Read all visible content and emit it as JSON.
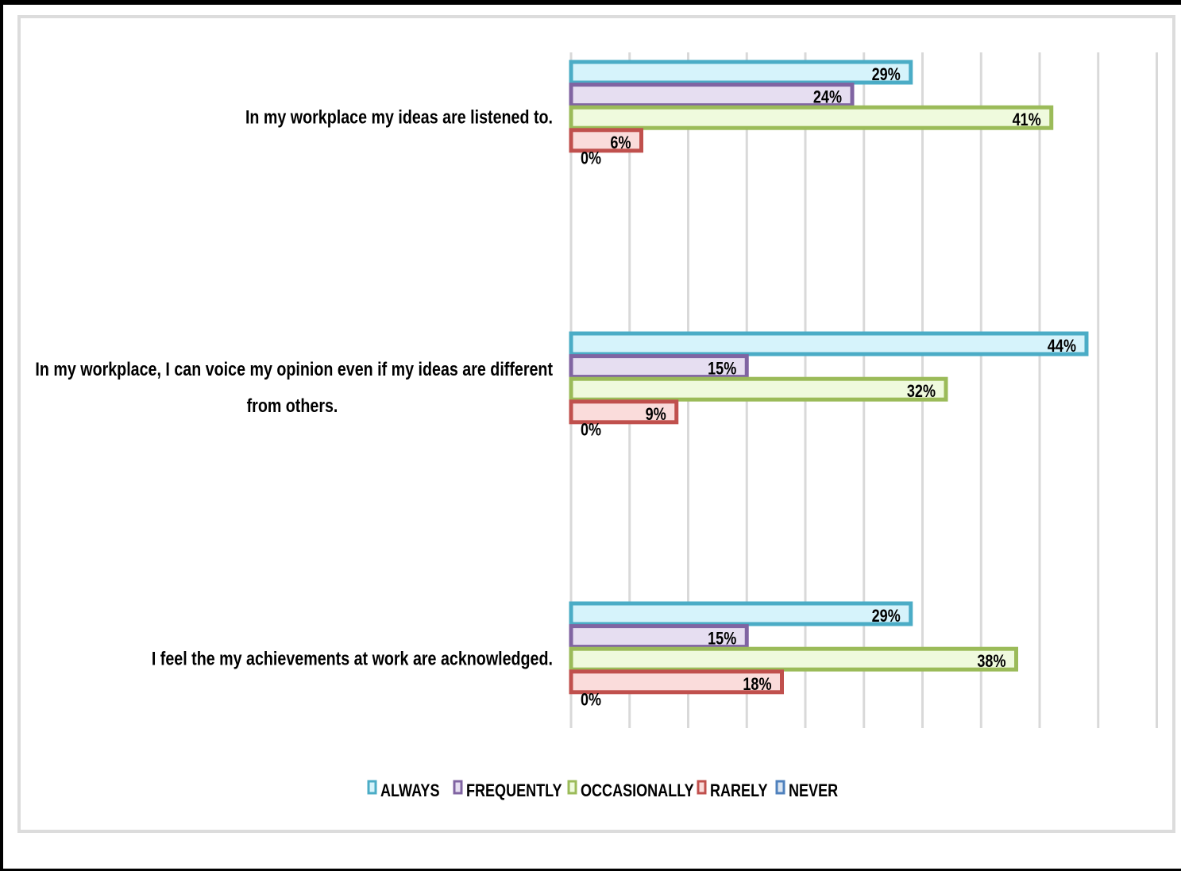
{
  "chart_data": {
    "type": "bar",
    "orientation": "horizontal",
    "categories": [
      "In my workplace my ideas are listened to.",
      "In my workplace, I can voice my opinion even if my ideas are different from others.",
      "I feel the my achievements at work are acknowledged."
    ],
    "category_lines": [
      [
        "In my workplace my ideas are listened to."
      ],
      [
        "In my workplace, I can voice my opinion even if my ideas are different",
        "from others."
      ],
      [
        "I feel the my achievements at work are acknowledged."
      ]
    ],
    "series": [
      {
        "name": "ALWAYS",
        "values": [
          29,
          44,
          29
        ],
        "labels": [
          "29%",
          "44%",
          "29%"
        ],
        "color": "#4bacc6",
        "fill": "#d6f3fb"
      },
      {
        "name": "FREQUENTLY",
        "values": [
          24,
          15,
          15
        ],
        "labels": [
          "24%",
          "15%",
          "15%"
        ],
        "color": "#8064a2",
        "fill": "#e6def1"
      },
      {
        "name": "OCCASIONALLY",
        "values": [
          41,
          32,
          38
        ],
        "labels": [
          "41%",
          "32%",
          "38%"
        ],
        "color": "#9bbb59",
        "fill": "#effadd"
      },
      {
        "name": "RARELY",
        "values": [
          6,
          9,
          18
        ],
        "labels": [
          "6%",
          "9%",
          "18%"
        ],
        "color": "#c0504d",
        "fill": "#fadcdb"
      },
      {
        "name": "NEVER",
        "values": [
          0,
          0,
          0
        ],
        "labels": [
          "0%",
          "0%",
          "0%"
        ],
        "color": "#4f81bd",
        "fill": "#dce6f2"
      }
    ],
    "xlim": [
      0,
      50
    ],
    "gridlines": true,
    "legend_position": "bottom"
  }
}
